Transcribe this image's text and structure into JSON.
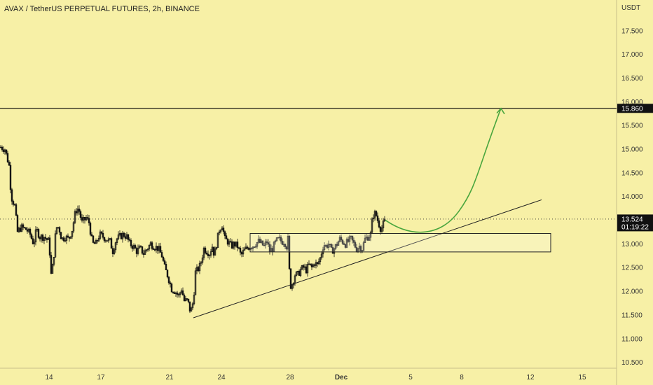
{
  "chart_data": {
    "type": "candlestick",
    "title": "AVAX / TetherUS PERPETUAL FUTURES, 2h, BINANCE",
    "y_unit": "USDT",
    "ylim": [
      10.15,
      17.85
    ],
    "y_ticks": [
      "10.500",
      "11.000",
      "11.500",
      "12.000",
      "12.500",
      "13.000",
      "13.500",
      "14.000",
      "14.500",
      "15.000",
      "15.500",
      "16.000",
      "16.500",
      "17.000",
      "17.500"
    ],
    "x_ticks": [
      {
        "label": "14",
        "idx": 70
      },
      {
        "label": "17",
        "idx": 144
      },
      {
        "label": "21",
        "idx": 242
      },
      {
        "label": "24",
        "idx": 316
      },
      {
        "label": "28",
        "idx": 414
      },
      {
        "label": "Dec",
        "idx": 487
      },
      {
        "label": "5",
        "idx": 586
      },
      {
        "label": "8",
        "idx": 659
      },
      {
        "label": "12",
        "idx": 757
      },
      {
        "label": "15",
        "idx": 831
      }
    ],
    "price_path": [
      [
        0,
        15.05
      ],
      [
        7,
        15.0
      ],
      [
        13,
        14.65
      ],
      [
        16,
        14.0
      ],
      [
        21,
        13.8
      ],
      [
        25,
        13.25
      ],
      [
        30,
        13.35
      ],
      [
        38,
        13.3
      ],
      [
        43,
        13.2
      ],
      [
        48,
        13.0
      ],
      [
        52,
        13.3
      ],
      [
        57,
        13.15
      ],
      [
        63,
        13.15
      ],
      [
        70,
        13.05
      ],
      [
        73,
        12.35
      ],
      [
        76,
        12.6
      ],
      [
        80,
        13.35
      ],
      [
        84,
        13.35
      ],
      [
        88,
        13.1
      ],
      [
        93,
        13.15
      ],
      [
        98,
        13.1
      ],
      [
        103,
        13.3
      ],
      [
        108,
        13.7
      ],
      [
        112,
        13.75
      ],
      [
        117,
        13.45
      ],
      [
        123,
        13.55
      ],
      [
        127,
        13.45
      ],
      [
        132,
        13.0
      ],
      [
        137,
        13.0
      ],
      [
        142,
        13.2
      ],
      [
        147,
        13.15
      ],
      [
        152,
        13.1
      ],
      [
        157,
        13.05
      ],
      [
        161,
        12.85
      ],
      [
        166,
        13.1
      ],
      [
        171,
        13.15
      ],
      [
        176,
        13.2
      ],
      [
        181,
        13.15
      ],
      [
        185,
        13.0
      ],
      [
        190,
        12.95
      ],
      [
        195,
        12.85
      ],
      [
        200,
        12.9
      ],
      [
        205,
        12.8
      ],
      [
        210,
        12.9
      ],
      [
        215,
        13.0
      ],
      [
        220,
        12.95
      ],
      [
        226,
        12.9
      ],
      [
        231,
        12.75
      ],
      [
        235,
        12.5
      ],
      [
        240,
        12.3
      ],
      [
        245,
        12.05
      ],
      [
        250,
        12.0
      ],
      [
        255,
        11.9
      ],
      [
        259,
        12.05
      ],
      [
        263,
        11.8
      ],
      [
        268,
        11.8
      ],
      [
        272,
        11.55
      ],
      [
        276,
        11.8
      ],
      [
        279,
        12.4
      ],
      [
        282,
        12.45
      ],
      [
        286,
        12.55
      ],
      [
        291,
        12.9
      ],
      [
        295,
        12.85
      ],
      [
        299,
        12.8
      ],
      [
        303,
        12.95
      ],
      [
        306,
        12.75
      ],
      [
        309,
        13.0
      ],
      [
        313,
        13.3
      ],
      [
        317,
        13.4
      ],
      [
        321,
        13.1
      ],
      [
        325,
        13.05
      ],
      [
        330,
        12.95
      ],
      [
        334,
        13.0
      ],
      [
        339,
        12.95
      ],
      [
        344,
        12.75
      ],
      [
        348,
        12.85
      ],
      [
        352,
        12.9
      ],
      [
        356,
        12.95
      ],
      [
        360,
        12.95
      ],
      [
        364,
        13.0
      ],
      [
        369,
        13.05
      ],
      [
        373,
        13.0
      ],
      [
        377,
        12.95
      ],
      [
        381,
        13.05
      ],
      [
        385,
        12.85
      ],
      [
        389,
        12.9
      ],
      [
        394,
        13.05
      ],
      [
        398,
        13.1
      ],
      [
        402,
        13.05
      ],
      [
        406,
        13.05
      ],
      [
        409,
        12.95
      ],
      [
        411,
        13.1
      ],
      [
        414,
        12.1
      ],
      [
        417,
        12.15
      ],
      [
        421,
        12.35
      ],
      [
        425,
        12.35
      ],
      [
        429,
        12.45
      ],
      [
        433,
        12.5
      ],
      [
        437,
        12.45
      ],
      [
        441,
        12.55
      ],
      [
        445,
        12.5
      ],
      [
        449,
        12.6
      ],
      [
        453,
        12.55
      ],
      [
        457,
        12.7
      ],
      [
        462,
        13.0
      ],
      [
        465,
        12.95
      ],
      [
        469,
        13.0
      ],
      [
        473,
        12.85
      ],
      [
        477,
        12.9
      ],
      [
        481,
        13.0
      ],
      [
        485,
        13.1
      ],
      [
        489,
        13.05
      ],
      [
        493,
        13.0
      ],
      [
        497,
        13.05
      ],
      [
        501,
        13.1
      ],
      [
        505,
        13.0
      ],
      [
        509,
        12.9
      ],
      [
        513,
        12.95
      ],
      [
        517,
        12.9
      ],
      [
        521,
        13.1
      ],
      [
        525,
        13.15
      ],
      [
        529,
        13.2
      ],
      [
        532,
        13.6
      ],
      [
        536,
        13.65
      ],
      [
        540,
        13.45
      ],
      [
        544,
        13.3
      ],
      [
        548,
        13.45
      ],
      [
        550,
        13.5
      ]
    ],
    "hline": {
      "price": 15.86,
      "label": "15.860"
    },
    "current_price": {
      "value": 13.524,
      "label": "13.524",
      "countdown": "01:19:22"
    },
    "trendline": {
      "from": [
        276,
        11.44
      ],
      "to": [
        773,
        13.93
      ]
    },
    "zone": {
      "x_from": 357,
      "x_to": 786,
      "top": 13.22,
      "bottom": 12.83
    },
    "projection": [
      [
        550,
        13.5
      ],
      [
        590,
        13.1
      ],
      [
        630,
        13.18
      ],
      [
        680,
        14.2
      ],
      [
        715,
        15.86
      ]
    ],
    "colors": {
      "background": "#f7f0a6",
      "candle": "#111111",
      "hline": "#000000",
      "trendline": "#222222",
      "zone_border": "#222222",
      "projection": "#4aa63e",
      "price_tag_bg": "#111111",
      "price_tag_text": "#ffffff"
    }
  }
}
